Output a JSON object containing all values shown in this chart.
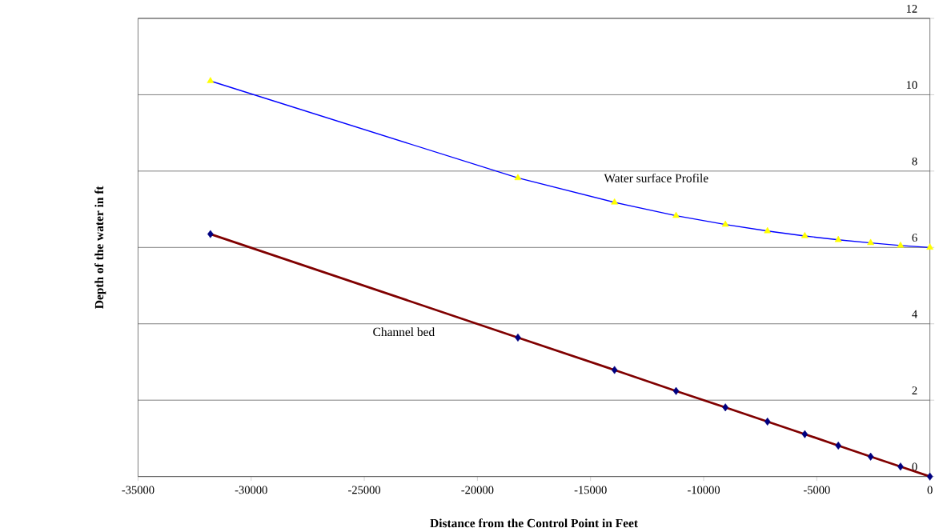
{
  "chart_data": {
    "type": "line",
    "xlabel": "Distance from the Control Point in Feet",
    "ylabel": "Depth of the water in ft",
    "x": [
      -31800,
      -18210,
      -13940,
      -11220,
      -9040,
      -7180,
      -5530,
      -4050,
      -2620,
      -1300,
      0
    ],
    "series": [
      {
        "name": "Water surface Profile",
        "color": "#0000ff",
        "marker": "triangle",
        "colors": [
          "#ffff00",
          "#ffff00",
          "#ffff00",
          "#ffff00",
          "#ffff00",
          "#ffff00",
          "#ffff00",
          "#ffff00",
          "#ffff00",
          "#ffff00",
          "#ffff00"
        ],
        "values": [
          10.36,
          7.82,
          7.18,
          6.83,
          6.6,
          6.43,
          6.3,
          6.2,
          6.12,
          6.05,
          6.0
        ]
      },
      {
        "name": "Channel bed",
        "color": "#800000",
        "marker": "diamond",
        "colors": [
          "#000080",
          "#000080",
          "#000080",
          "#000080",
          "#000080",
          "#000080",
          "#000080",
          "#000080",
          "#000080",
          "#000080",
          "#000080"
        ],
        "values": [
          6.35,
          3.64,
          2.79,
          2.24,
          1.81,
          1.44,
          1.11,
          0.81,
          0.52,
          0.26,
          0.0
        ]
      }
    ],
    "xlim": [
      -35000,
      0
    ],
    "xticks": [
      -35000,
      -30000,
      -25000,
      -20000,
      -15000,
      -10000,
      -5000,
      0
    ],
    "ylim": [
      0,
      12
    ],
    "yticks": [
      0,
      2,
      4,
      6,
      8,
      10,
      12
    ],
    "grid": "y",
    "line_style": "solid"
  }
}
